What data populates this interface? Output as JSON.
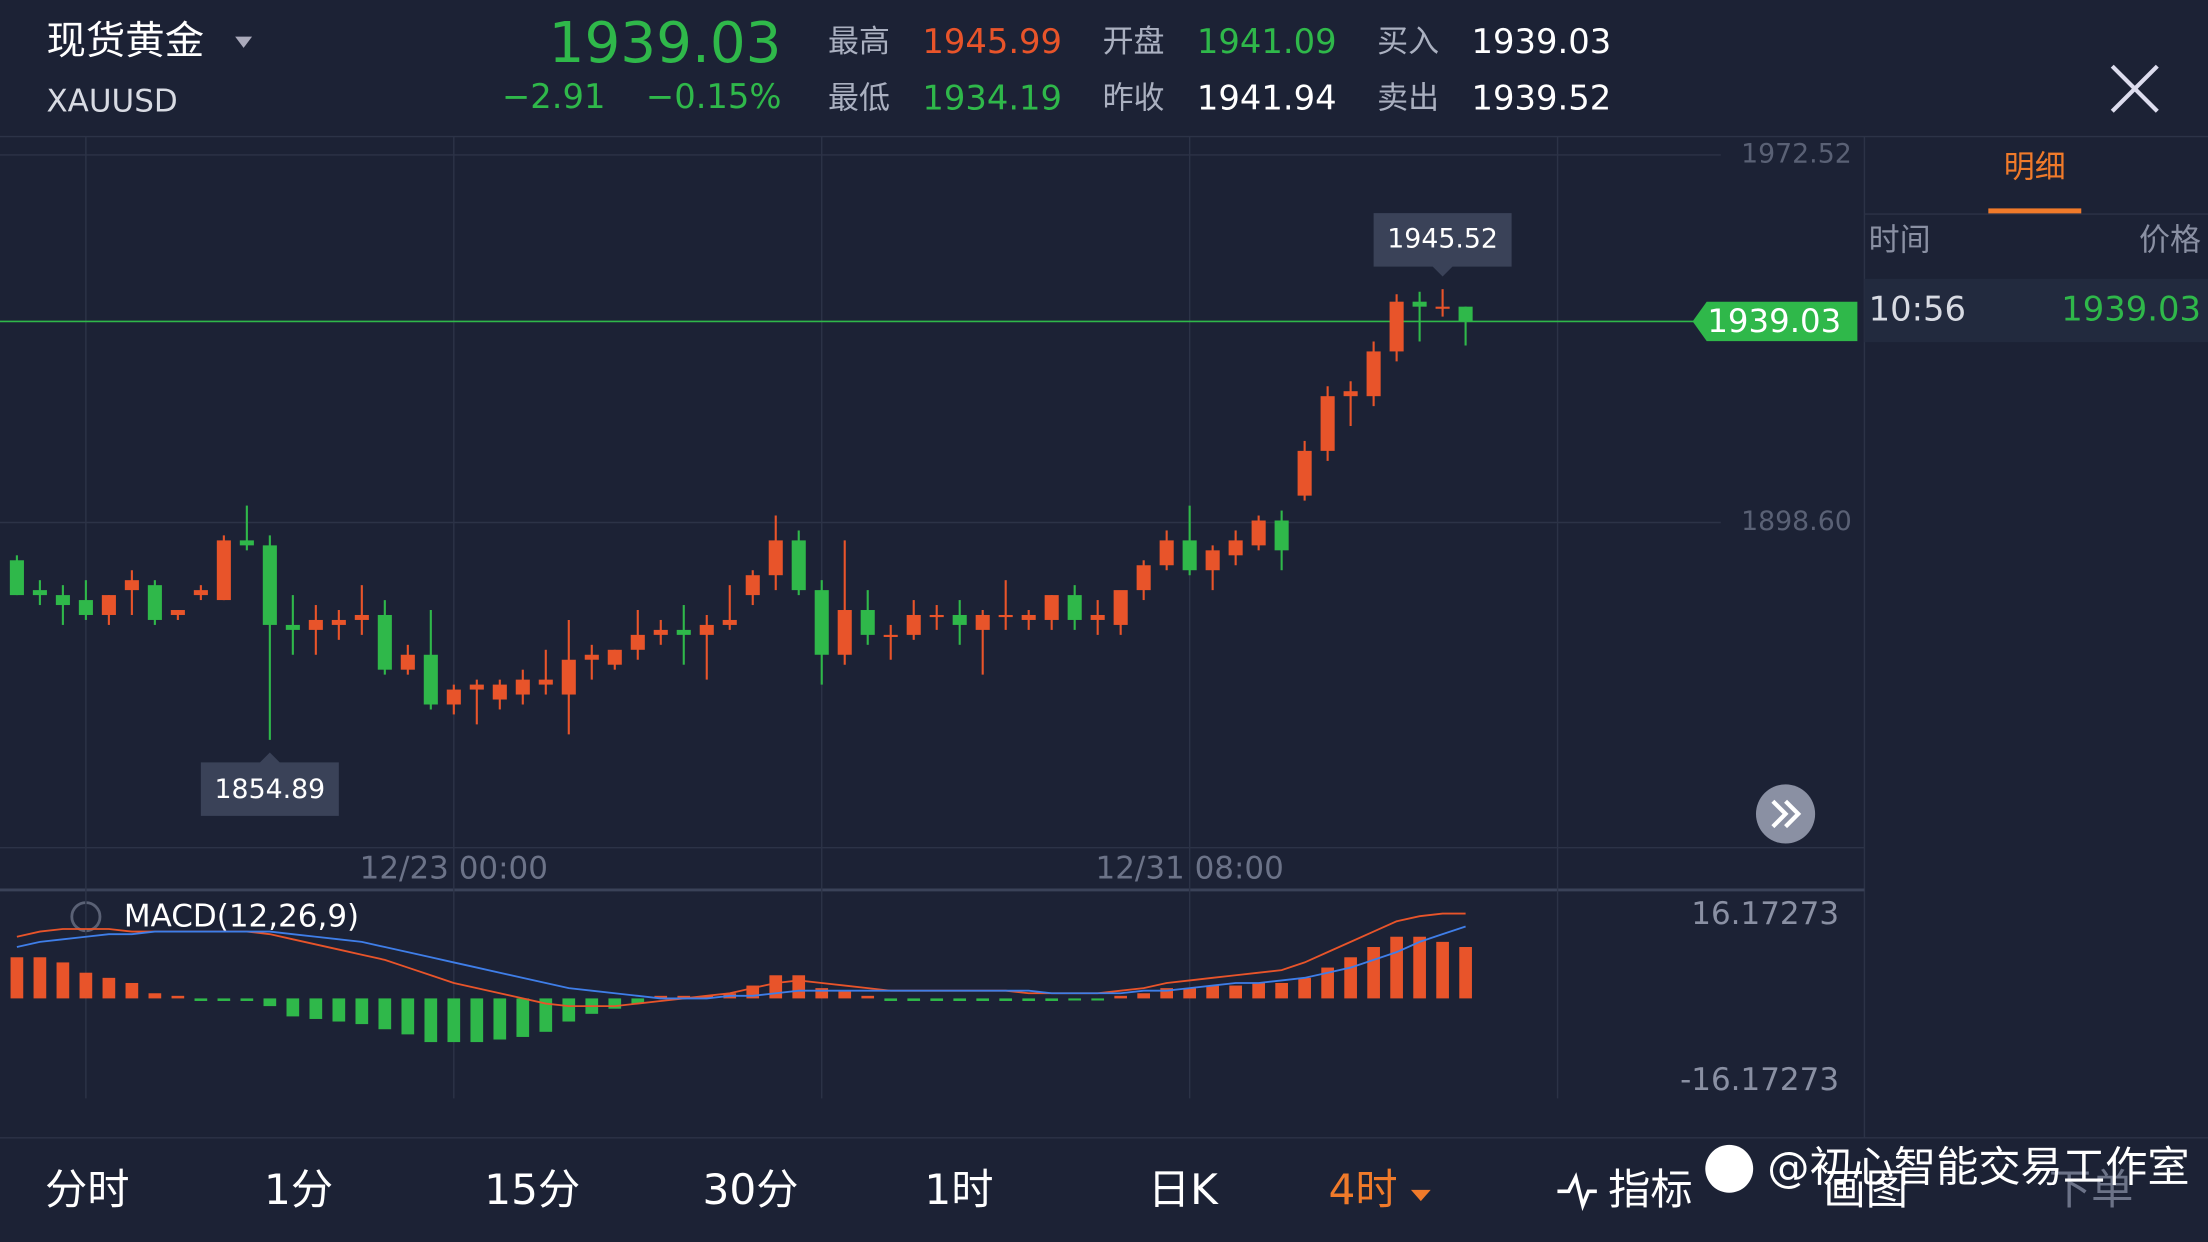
{
  "header": {
    "name": "现货黄金",
    "symbol": "XAUUSD",
    "price": "1939.03",
    "change": "−2.91",
    "change_pct": "−0.15%",
    "stats": [
      {
        "label": "最高",
        "value": "1945.99",
        "color": "#e8542a"
      },
      {
        "label": "开盘",
        "value": "1941.09",
        "color": "#2fb84a"
      },
      {
        "label": "买入",
        "value": "1939.03",
        "color": "#ffffff"
      },
      {
        "label": "最低",
        "value": "1934.19",
        "color": "#2fb84a"
      },
      {
        "label": "昨收",
        "value": "1941.94",
        "color": "#ffffff"
      },
      {
        "label": "卖出",
        "value": "1939.52",
        "color": "#ffffff"
      }
    ]
  },
  "detail": {
    "tab": "明细",
    "columns": [
      "时间",
      "价格"
    ],
    "rows": [
      [
        "10:56",
        "1939.03"
      ]
    ]
  },
  "chart_data": {
    "type": "candlestick",
    "up_color": "#e8542a",
    "down_color": "#2fb84a",
    "ylim": [
      1833.2,
      1976.2
    ],
    "yticks": [
      1972.52,
      {
        "value": 1898.6,
        "label": "1898.60"
      }
    ],
    "xticks": [
      {
        "value": 3,
        "label": null
      },
      {
        "value": 19,
        "label": "12/23 00:00"
      },
      {
        "value": 35,
        "label": null
      },
      {
        "value": 51,
        "label": "12/31 08:00"
      },
      {
        "value": 67,
        "label": null
      }
    ],
    "last": 1939.03,
    "last_label": "1939.03",
    "high_label": "1945.52",
    "low_label": "1854.89",
    "candles": [
      [
        1891,
        1892,
        1884,
        1884
      ],
      [
        1885,
        1887,
        1882,
        1884
      ],
      [
        1884,
        1886,
        1878,
        1882
      ],
      [
        1883,
        1887,
        1879,
        1880
      ],
      [
        1880,
        1884,
        1878,
        1884
      ],
      [
        1885,
        1889,
        1880,
        1887
      ],
      [
        1886,
        1887,
        1878,
        1879
      ],
      [
        1880,
        1881,
        1879,
        1881
      ],
      [
        1884,
        1886,
        1883,
        1885
      ],
      [
        1883,
        1896,
        1883,
        1895
      ],
      [
        1895,
        1902,
        1893,
        1894
      ],
      [
        1894,
        1896,
        1854.89,
        1878
      ],
      [
        1878,
        1884,
        1872,
        1877
      ],
      [
        1877,
        1882,
        1872,
        1879
      ],
      [
        1878,
        1881,
        1875,
        1879
      ],
      [
        1879,
        1886,
        1876,
        1880
      ],
      [
        1880,
        1883,
        1868,
        1869
      ],
      [
        1869,
        1874,
        1868,
        1872
      ],
      [
        1872,
        1881,
        1861,
        1862
      ],
      [
        1862,
        1866,
        1860,
        1865
      ],
      [
        1865,
        1867,
        1858,
        1866
      ],
      [
        1863,
        1867,
        1861,
        1866
      ],
      [
        1864,
        1869,
        1862,
        1867
      ],
      [
        1866,
        1873,
        1864,
        1867
      ],
      [
        1864,
        1879,
        1856,
        1871
      ],
      [
        1871,
        1874,
        1867,
        1872
      ],
      [
        1870,
        1873,
        1869,
        1873
      ],
      [
        1873,
        1881,
        1871,
        1876
      ],
      [
        1876,
        1879,
        1874,
        1877
      ],
      [
        1877,
        1882,
        1870,
        1876
      ],
      [
        1876,
        1880,
        1867,
        1878
      ],
      [
        1878,
        1886,
        1877,
        1879
      ],
      [
        1884,
        1889,
        1882,
        1888
      ],
      [
        1888,
        1900,
        1885,
        1895
      ],
      [
        1895,
        1897,
        1884,
        1885
      ],
      [
        1885,
        1887,
        1866,
        1872
      ],
      [
        1872,
        1895,
        1870,
        1881
      ],
      [
        1881,
        1885,
        1874,
        1876
      ],
      [
        1876,
        1878,
        1871,
        1876
      ],
      [
        1876,
        1883,
        1875,
        1880
      ],
      [
        1880,
        1882,
        1877,
        1880
      ],
      [
        1880,
        1883,
        1874,
        1878
      ],
      [
        1877,
        1881,
        1868,
        1880
      ],
      [
        1880,
        1887,
        1877,
        1880
      ],
      [
        1879,
        1881,
        1877,
        1880
      ],
      [
        1879,
        1884,
        1877,
        1884
      ],
      [
        1884,
        1886,
        1877,
        1879
      ],
      [
        1879,
        1883,
        1876,
        1880
      ],
      [
        1878,
        1884,
        1876,
        1885
      ],
      [
        1885,
        1891,
        1883,
        1890
      ],
      [
        1890,
        1897,
        1889,
        1895
      ],
      [
        1895,
        1902,
        1888,
        1889
      ],
      [
        1889,
        1894,
        1885,
        1893
      ],
      [
        1892,
        1897,
        1890,
        1895
      ],
      [
        1894,
        1900,
        1893,
        1899
      ],
      [
        1899,
        1901,
        1889,
        1893
      ],
      [
        1904,
        1915,
        1903,
        1913
      ],
      [
        1913,
        1926,
        1911,
        1924
      ],
      [
        1924,
        1927,
        1918,
        1925
      ],
      [
        1924,
        1935,
        1922,
        1933
      ],
      [
        1933,
        1944.5,
        1931,
        1943
      ],
      [
        1943,
        1945,
        1935,
        1942
      ],
      [
        1942,
        1945.52,
        1940,
        1942
      ],
      [
        1942,
        1942,
        1934.19,
        1939.03
      ]
    ],
    "macd": {
      "title": "MACD(12,26,9)",
      "ylim": [
        -19.45,
        21.1
      ],
      "yticks": [
        16.17273,
        -16.17273
      ],
      "dif_color": "#e8542a",
      "dea_color": "#3f7ee8",
      "hist": [
        8,
        8,
        7,
        5,
        4,
        3,
        1,
        0.5,
        -0.5,
        -0.5,
        -0.5,
        -1.5,
        -3.5,
        -4,
        -4.5,
        -5,
        -6,
        -7,
        -8.5,
        -8.5,
        -8.5,
        -8,
        -7.5,
        -6.5,
        -4.5,
        -3,
        -2,
        -1,
        0.5,
        0.5,
        0.5,
        1,
        2.5,
        4.5,
        4.5,
        2,
        1.5,
        0.5,
        -0.5,
        -0.5,
        -0.5,
        -0.5,
        -0.5,
        -0.5,
        -0.5,
        -0.5,
        -0.3,
        -0.3,
        0.5,
        1,
        2,
        2,
        2.5,
        2.5,
        3,
        3,
        4,
        6,
        8,
        10,
        12,
        12,
        11,
        10
      ],
      "dif": [
        12,
        13,
        13.5,
        13.5,
        13.5,
        13,
        13,
        13,
        13,
        13,
        13,
        12.5,
        11.5,
        10.5,
        9.5,
        8.5,
        7.5,
        6,
        4.5,
        3,
        2,
        1,
        0,
        -1,
        -1.5,
        -1.5,
        -1.5,
        -1,
        -0.5,
        0,
        0.5,
        1,
        2,
        3,
        3.5,
        3,
        2.5,
        2,
        1.5,
        1.5,
        1.5,
        1.5,
        1.5,
        1.5,
        1,
        1,
        1,
        1,
        1.5,
        2,
        3,
        3.5,
        4,
        4.5,
        5,
        5.5,
        7,
        9,
        11,
        13,
        15,
        16,
        16.5,
        16.5
      ],
      "dea": [
        10,
        11,
        11.5,
        12,
        12.5,
        12.5,
        13,
        13,
        13,
        13,
        13,
        13,
        12.5,
        12,
        11.5,
        11,
        10,
        9,
        8,
        7,
        6,
        5,
        4,
        3,
        2,
        1.5,
        1,
        0.5,
        0,
        0,
        0,
        0.5,
        0.5,
        1,
        1.5,
        1.5,
        1.5,
        1.5,
        1.5,
        1.5,
        1.5,
        1.5,
        1.5,
        1.5,
        1.5,
        1,
        1,
        1,
        1,
        1.5,
        1.5,
        2,
        2.5,
        3,
        3,
        3.5,
        4,
        5,
        6,
        7.5,
        9,
        11,
        12.5,
        14
      ]
    }
  },
  "tabs": [
    "分时",
    "1分",
    "15分",
    "30分",
    "1时",
    "日K",
    "4时"
  ],
  "tools": [
    "指标",
    "画图",
    "下单"
  ],
  "watermark": "@初心智能交易工作室"
}
